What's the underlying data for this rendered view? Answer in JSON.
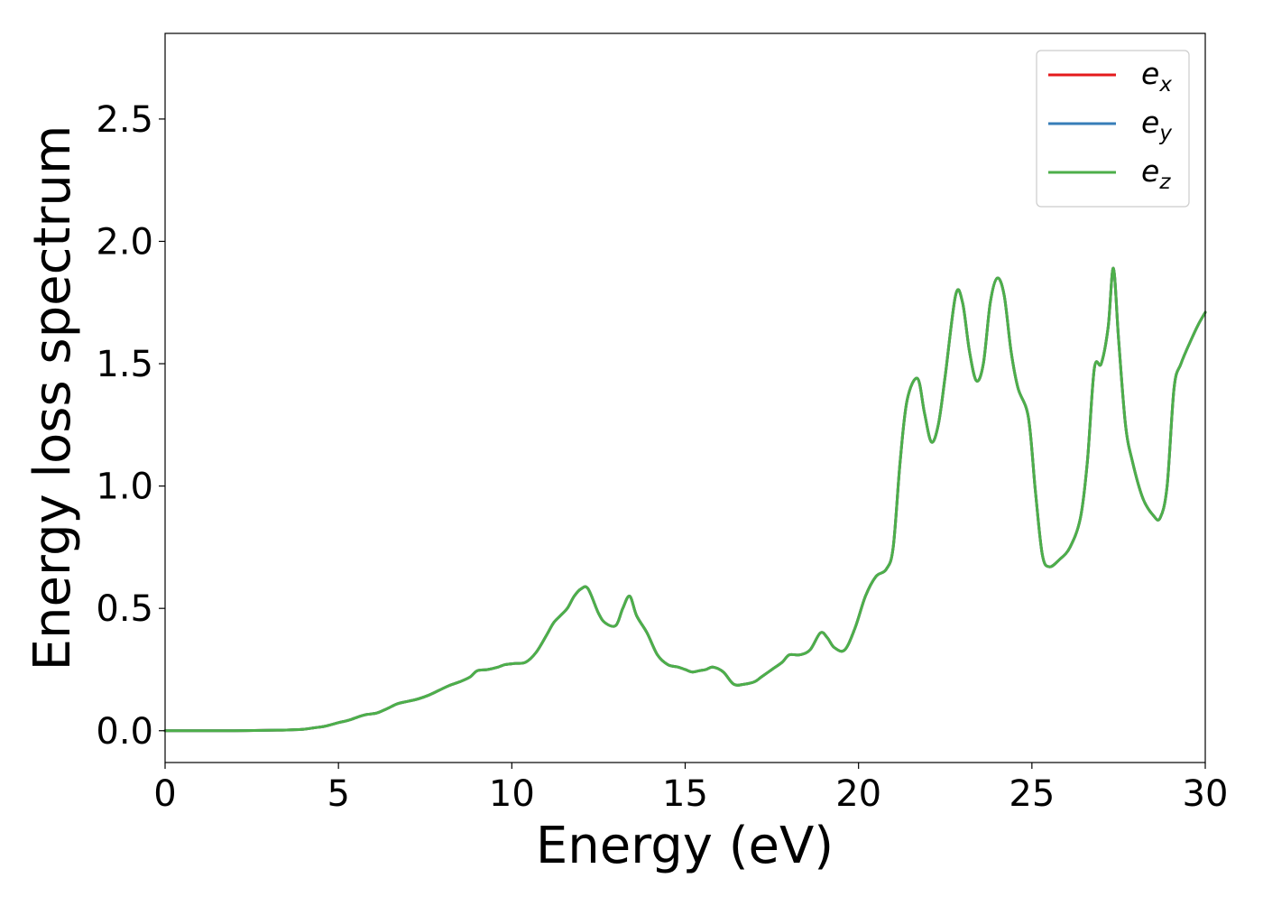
{
  "chart_data": {
    "type": "line",
    "title": "",
    "xlabel": "Energy (eV)",
    "ylabel": "Energy loss spectrum",
    "xlim": [
      0,
      30
    ],
    "ylim": [
      -0.13,
      2.85
    ],
    "xticks": [
      0,
      5,
      10,
      15,
      20,
      25,
      30
    ],
    "xtick_labels": [
      "0",
      "5",
      "10",
      "15",
      "20",
      "25",
      "30"
    ],
    "yticks": [
      0.0,
      0.5,
      1.0,
      1.5,
      2.0,
      2.5
    ],
    "ytick_labels": [
      "0.0",
      "0.5",
      "1.0",
      "1.5",
      "2.0",
      "2.5"
    ],
    "grid": false,
    "legend_position": "top-right",
    "x": [
      0,
      1,
      2,
      3,
      3.5,
      4,
      4.3,
      4.6,
      5,
      5.3,
      5.6,
      5.8,
      6.1,
      6.4,
      6.7,
      7.0,
      7.3,
      7.6,
      7.9,
      8.2,
      8.5,
      8.8,
      9.0,
      9.3,
      9.6,
      9.8,
      10.1,
      10.4,
      10.7,
      11.0,
      11.2,
      11.4,
      11.6,
      11.8,
      12.0,
      12.2,
      12.5,
      12.7,
      13.0,
      13.2,
      13.4,
      13.6,
      13.9,
      14.2,
      14.5,
      14.8,
      15.0,
      15.2,
      15.4,
      15.6,
      15.8,
      16.1,
      16.4,
      16.7,
      17.0,
      17.2,
      17.5,
      17.8,
      18.0,
      18.3,
      18.6,
      18.9,
      19.1,
      19.3,
      19.6,
      19.9,
      20.2,
      20.5,
      20.8,
      21.0,
      21.2,
      21.4,
      21.7,
      21.9,
      22.1,
      22.3,
      22.5,
      22.8,
      23.0,
      23.2,
      23.4,
      23.6,
      23.8,
      24.0,
      24.2,
      24.4,
      24.6,
      24.9,
      25.1,
      25.3,
      25.5,
      25.8,
      26.1,
      26.4,
      26.6,
      26.8,
      27.0,
      27.2,
      27.35,
      27.5,
      27.7,
      27.9,
      28.2,
      28.5,
      28.7,
      28.9,
      29.1,
      29.3,
      29.6,
      29.8,
      30.0
    ],
    "series": [
      {
        "name": "x",
        "color": "#e41a1c",
        "values": [
          0,
          0,
          0,
          0.002,
          0.003,
          0.006,
          0.012,
          0.018,
          0.033,
          0.043,
          0.058,
          0.066,
          0.072,
          0.09,
          0.11,
          0.12,
          0.13,
          0.145,
          0.165,
          0.185,
          0.2,
          0.22,
          0.245,
          0.25,
          0.26,
          0.27,
          0.275,
          0.28,
          0.32,
          0.39,
          0.44,
          0.47,
          0.5,
          0.55,
          0.58,
          0.58,
          0.48,
          0.44,
          0.43,
          0.5,
          0.55,
          0.47,
          0.4,
          0.31,
          0.27,
          0.26,
          0.25,
          0.24,
          0.245,
          0.25,
          0.26,
          0.24,
          0.19,
          0.19,
          0.2,
          0.22,
          0.25,
          0.28,
          0.31,
          0.31,
          0.33,
          0.4,
          0.38,
          0.34,
          0.33,
          0.42,
          0.55,
          0.63,
          0.66,
          0.75,
          1.1,
          1.35,
          1.44,
          1.3,
          1.18,
          1.25,
          1.45,
          1.78,
          1.75,
          1.55,
          1.43,
          1.5,
          1.75,
          1.85,
          1.78,
          1.55,
          1.4,
          1.28,
          0.98,
          0.72,
          0.67,
          0.7,
          0.75,
          0.87,
          1.1,
          1.48,
          1.5,
          1.65,
          1.89,
          1.6,
          1.25,
          1.1,
          0.95,
          0.88,
          0.87,
          1.0,
          1.4,
          1.5,
          1.6,
          1.66,
          1.71
        ]
      },
      {
        "name": "y",
        "color": "#377eb8",
        "values": [
          0,
          0,
          0,
          0.002,
          0.003,
          0.006,
          0.012,
          0.018,
          0.033,
          0.043,
          0.058,
          0.066,
          0.072,
          0.09,
          0.11,
          0.12,
          0.13,
          0.145,
          0.165,
          0.185,
          0.2,
          0.22,
          0.245,
          0.25,
          0.26,
          0.27,
          0.275,
          0.28,
          0.32,
          0.39,
          0.44,
          0.47,
          0.5,
          0.55,
          0.58,
          0.58,
          0.48,
          0.44,
          0.43,
          0.5,
          0.55,
          0.47,
          0.4,
          0.31,
          0.27,
          0.26,
          0.25,
          0.24,
          0.245,
          0.25,
          0.26,
          0.24,
          0.19,
          0.19,
          0.2,
          0.22,
          0.25,
          0.28,
          0.31,
          0.31,
          0.33,
          0.4,
          0.38,
          0.34,
          0.33,
          0.42,
          0.55,
          0.63,
          0.66,
          0.75,
          1.1,
          1.35,
          1.44,
          1.3,
          1.18,
          1.25,
          1.45,
          1.78,
          1.75,
          1.55,
          1.43,
          1.5,
          1.75,
          1.85,
          1.78,
          1.55,
          1.4,
          1.28,
          0.98,
          0.72,
          0.67,
          0.7,
          0.75,
          0.87,
          1.1,
          1.48,
          1.5,
          1.65,
          1.89,
          1.6,
          1.25,
          1.1,
          0.95,
          0.88,
          0.87,
          1.0,
          1.4,
          1.5,
          1.6,
          1.66,
          1.71
        ]
      },
      {
        "name": "z",
        "color": "#4daf4a",
        "values": [
          0,
          0,
          0,
          0.002,
          0.003,
          0.006,
          0.012,
          0.018,
          0.033,
          0.043,
          0.058,
          0.066,
          0.072,
          0.09,
          0.11,
          0.12,
          0.13,
          0.145,
          0.165,
          0.185,
          0.2,
          0.22,
          0.245,
          0.25,
          0.26,
          0.27,
          0.275,
          0.28,
          0.32,
          0.39,
          0.44,
          0.47,
          0.5,
          0.55,
          0.58,
          0.58,
          0.48,
          0.44,
          0.43,
          0.5,
          0.55,
          0.47,
          0.4,
          0.31,
          0.27,
          0.26,
          0.25,
          0.24,
          0.245,
          0.25,
          0.26,
          0.24,
          0.19,
          0.19,
          0.2,
          0.22,
          0.25,
          0.28,
          0.31,
          0.31,
          0.33,
          0.4,
          0.38,
          0.34,
          0.33,
          0.42,
          0.55,
          0.63,
          0.66,
          0.75,
          1.1,
          1.35,
          1.44,
          1.3,
          1.18,
          1.25,
          1.45,
          1.78,
          1.75,
          1.55,
          1.43,
          1.5,
          1.75,
          1.85,
          1.78,
          1.55,
          1.4,
          1.28,
          0.98,
          0.72,
          0.67,
          0.7,
          0.75,
          0.87,
          1.1,
          1.48,
          1.5,
          1.65,
          1.89,
          1.6,
          1.25,
          1.1,
          0.95,
          0.88,
          0.87,
          1.0,
          1.4,
          1.5,
          1.6,
          1.66,
          1.71
        ]
      }
    ],
    "legend": [
      {
        "base": "e",
        "sub": "x",
        "color": "#e41a1c"
      },
      {
        "base": "e",
        "sub": "y",
        "color": "#377eb8"
      },
      {
        "base": "e",
        "sub": "z",
        "color": "#4daf4a"
      }
    ]
  }
}
